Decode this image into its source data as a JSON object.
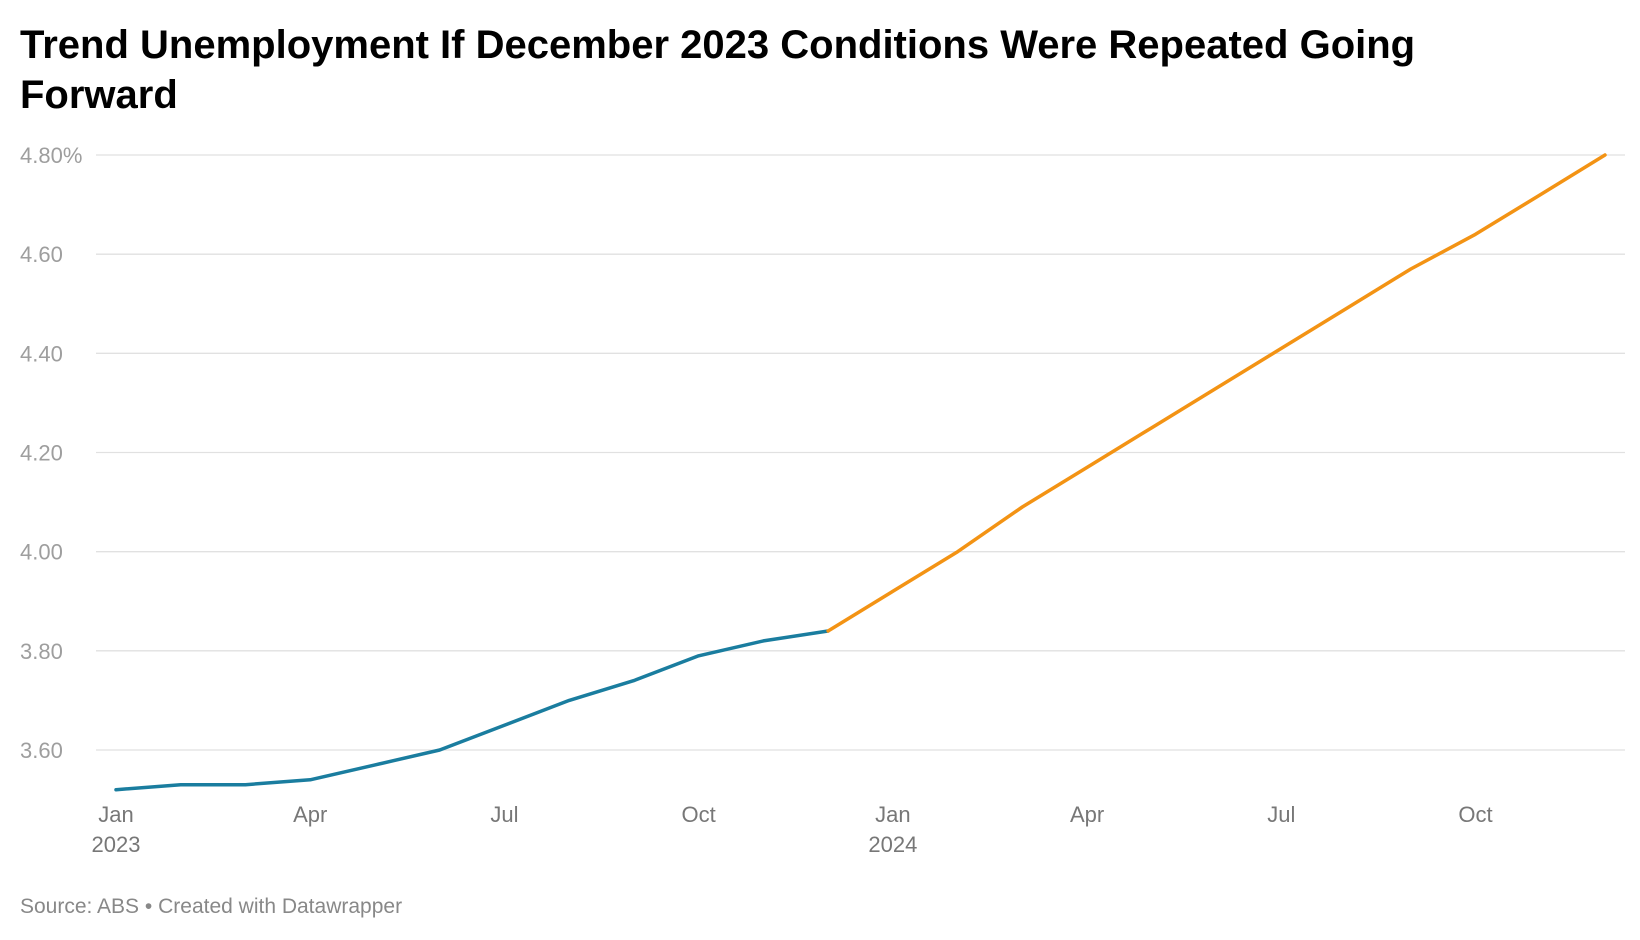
{
  "title": "Trend Unemployment If December 2023 Conditions Were Repeated Going Forward",
  "footer": {
    "source": "Source: ABS",
    "separator": " • ",
    "created": "Created with Datawrapper"
  },
  "colors": {
    "actual": "#1a7d9f",
    "projected": "#f39314",
    "grid": "#e1e1e1",
    "tick_text": "#9e9e9e"
  },
  "chart_data": {
    "type": "line",
    "title": "Trend Unemployment If December 2023 Conditions Were Repeated Going Forward",
    "xlabel": "",
    "ylabel": "",
    "ylim": [
      3.5,
      4.8
    ],
    "xlim": [
      "2023-01",
      "2024-12"
    ],
    "grid": true,
    "y_ticks": [
      {
        "value": 4.8,
        "label": "4.80%"
      },
      {
        "value": 4.6,
        "label": "4.60"
      },
      {
        "value": 4.4,
        "label": "4.40"
      },
      {
        "value": 4.2,
        "label": "4.20"
      },
      {
        "value": 4.0,
        "label": "4.00"
      },
      {
        "value": 3.8,
        "label": "3.80"
      },
      {
        "value": 3.6,
        "label": "3.60"
      }
    ],
    "x_ticks": [
      {
        "date": "2023-01",
        "label": "Jan",
        "year": "2023"
      },
      {
        "date": "2023-04",
        "label": "Apr"
      },
      {
        "date": "2023-07",
        "label": "Jul"
      },
      {
        "date": "2023-10",
        "label": "Oct"
      },
      {
        "date": "2024-01",
        "label": "Jan",
        "year": "2024"
      },
      {
        "date": "2024-04",
        "label": "Apr"
      },
      {
        "date": "2024-07",
        "label": "Jul"
      },
      {
        "date": "2024-10",
        "label": "Oct"
      }
    ],
    "series": [
      {
        "key": "actual",
        "x": [
          "2023-01",
          "2023-02",
          "2023-03",
          "2023-04",
          "2023-05",
          "2023-06",
          "2023-07",
          "2023-08",
          "2023-09",
          "2023-10",
          "2023-11",
          "2023-12"
        ],
        "values": [
          3.52,
          3.53,
          3.53,
          3.54,
          3.57,
          3.6,
          3.65,
          3.7,
          3.74,
          3.79,
          3.82,
          3.84
        ]
      },
      {
        "key": "projected",
        "x": [
          "2023-12",
          "2024-01",
          "2024-02",
          "2024-03",
          "2024-04",
          "2024-05",
          "2024-06",
          "2024-07",
          "2024-08",
          "2024-09",
          "2024-10",
          "2024-11",
          "2024-12"
        ],
        "values": [
          3.84,
          3.92,
          4.0,
          4.09,
          4.17,
          4.25,
          4.33,
          4.41,
          4.49,
          4.57,
          4.64,
          4.72,
          4.8
        ]
      }
    ]
  }
}
